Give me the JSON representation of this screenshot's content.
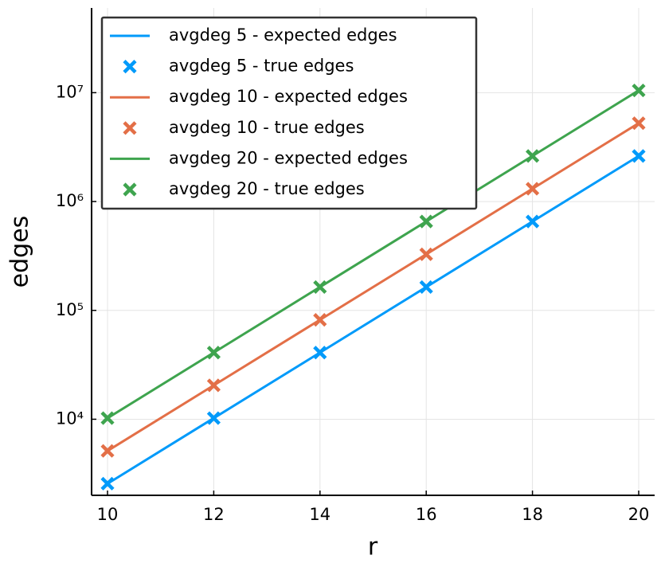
{
  "chart_data": {
    "type": "line",
    "x_label": "r",
    "y_label": "edges",
    "log_y": true,
    "grid": true,
    "legend": "top-left",
    "xlim": [
      9.7,
      20.3
    ],
    "xticks": [
      10,
      12,
      14,
      16,
      18,
      20
    ],
    "ylim": [
      2000,
      60000000
    ],
    "yticks": [
      {
        "value": 10000,
        "label": "10⁴"
      },
      {
        "value": 100000,
        "label": "10⁵"
      },
      {
        "value": 1000000,
        "label": "10⁶"
      },
      {
        "value": 10000000,
        "label": "10⁷"
      }
    ],
    "x": [
      10,
      12,
      14,
      16,
      18,
      20
    ],
    "series": [
      {
        "name": "avgdeg 5 - expected edges",
        "kind": "line",
        "color": "#009AFA",
        "values": [
          2560,
          10240,
          40960,
          163840,
          655360,
          2621440
        ]
      },
      {
        "name": "avgdeg 5 - true edges",
        "kind": "marker",
        "color": "#009AFA",
        "values": [
          2560,
          10240,
          40960,
          163840,
          655360,
          2621440
        ]
      },
      {
        "name": "avgdeg 10 - expected edges",
        "kind": "line",
        "color": "#E36F47",
        "values": [
          5120,
          20480,
          81920,
          327680,
          1310720,
          5242880
        ]
      },
      {
        "name": "avgdeg 10 - true edges",
        "kind": "marker",
        "color": "#E36F47",
        "values": [
          5120,
          20480,
          81920,
          327680,
          1310720,
          5242880
        ]
      },
      {
        "name": "avgdeg 20 - expected edges",
        "kind": "line",
        "color": "#3EA44E",
        "values": [
          10240,
          40960,
          163840,
          655360,
          2621440,
          10485760
        ]
      },
      {
        "name": "avgdeg 20 - true edges",
        "kind": "marker",
        "color": "#3EA44E",
        "values": [
          10240,
          40960,
          163840,
          655360,
          2621440,
          10485760
        ]
      }
    ]
  }
}
